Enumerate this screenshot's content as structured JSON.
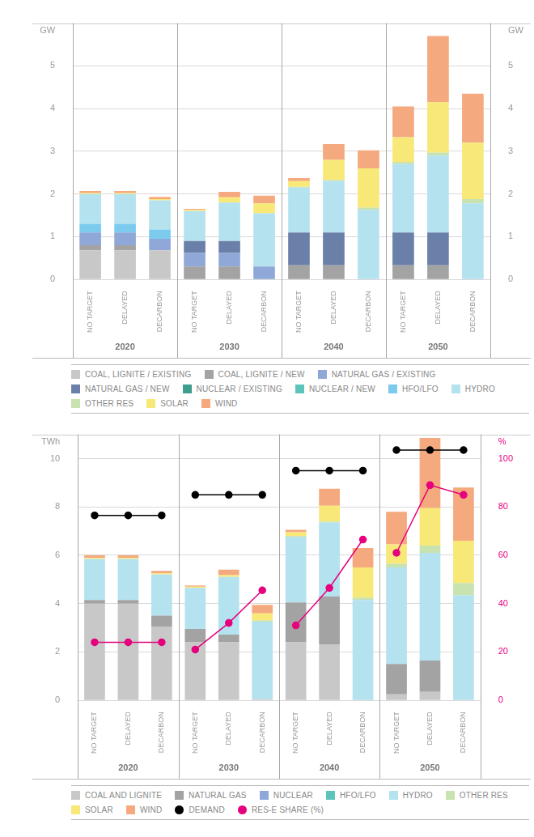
{
  "chart_data": [
    {
      "type": "bar",
      "stacked": true,
      "grid": true,
      "legend": "bottom",
      "y_label": "GW",
      "y2_label": "GW",
      "categories": [
        "NO TARGET",
        "DELAYED",
        "DECARBON",
        "NO TARGET",
        "DELAYED",
        "DECARBON",
        "NO TARGET",
        "DELAYED",
        "DECARBON",
        "NO TARGET",
        "DELAYED",
        "DECARBON"
      ],
      "category_groups": [
        "2020",
        "2030",
        "2040",
        "2050"
      ],
      "ylim": [
        0,
        6
      ],
      "yticks": [
        0,
        1,
        2,
        3,
        4,
        5
      ],
      "y2lim": [
        0,
        6
      ],
      "y2ticks": [
        0,
        1,
        2,
        3,
        4,
        5
      ],
      "series": [
        {
          "name": "COAL, LIGNITE / EXISTING",
          "color": "#c8c8c8",
          "values": [
            0.68,
            0.68,
            0.68,
            0,
            0,
            0,
            0,
            0,
            0,
            0,
            0,
            0
          ]
        },
        {
          "name": "COAL, LIGNITE / NEW",
          "color": "#a3a3a3",
          "values": [
            0.12,
            0.12,
            0,
            0.3,
            0.3,
            0,
            0.33,
            0.33,
            0,
            0.33,
            0.33,
            0
          ]
        },
        {
          "name": "NATURAL GAS / EXISTING",
          "color": "#8fa8d8",
          "values": [
            0.3,
            0.3,
            0.27,
            0.32,
            0.32,
            0.3,
            0,
            0,
            0,
            0,
            0,
            0
          ]
        },
        {
          "name": "NATURAL GAS / NEW",
          "color": "#6b80a8",
          "values": [
            0,
            0,
            0,
            0.28,
            0.28,
            0,
            0.77,
            0.77,
            0,
            0.77,
            0.77,
            0
          ]
        },
        {
          "name": "NUCLEAR / EXISTING",
          "color": "#3e9e8e",
          "values": [
            0,
            0,
            0,
            0,
            0,
            0,
            0,
            0,
            0,
            0,
            0,
            0
          ]
        },
        {
          "name": "NUCLEAR / NEW",
          "color": "#5dc4bc",
          "values": [
            0,
            0,
            0,
            0,
            0,
            0,
            0,
            0,
            0,
            0,
            0,
            0
          ]
        },
        {
          "name": "HFO/LFO",
          "color": "#7ccbef",
          "values": [
            0.2,
            0.2,
            0.22,
            0,
            0,
            0,
            0,
            0,
            0,
            0,
            0,
            0
          ]
        },
        {
          "name": "HYDRO",
          "color": "#b5e2ef",
          "values": [
            0.7,
            0.7,
            0.68,
            0.7,
            0.9,
            1.25,
            1.05,
            1.2,
            1.63,
            1.6,
            1.8,
            1.78
          ]
        },
        {
          "name": "OTHER RES",
          "color": "#c8e2b0",
          "values": [
            0,
            0,
            0,
            0,
            0,
            0,
            0.02,
            0.03,
            0.05,
            0.05,
            0.07,
            0.1
          ]
        },
        {
          "name": "SOLAR",
          "color": "#f8e878",
          "values": [
            0.02,
            0.02,
            0.03,
            0.03,
            0.12,
            0.23,
            0.13,
            0.47,
            0.92,
            0.58,
            1.18,
            1.32
          ]
        },
        {
          "name": "WIND",
          "color": "#f4a97e",
          "values": [
            0.05,
            0.05,
            0.05,
            0.02,
            0.13,
            0.18,
            0.07,
            0.37,
            0.42,
            0.72,
            1.55,
            1.15
          ]
        }
      ]
    },
    {
      "type": "bar",
      "stacked": true,
      "grid": true,
      "legend": "bottom",
      "y_label": "TWh",
      "y2_label": "%",
      "categories": [
        "NO TARGET",
        "DELAYED",
        "DECARBON",
        "NO TARGET",
        "DELAYED",
        "DECARBON",
        "NO TARGET",
        "DELAYED",
        "DECARBON",
        "NO TARGET",
        "DELAYED",
        "DECARBON"
      ],
      "category_groups": [
        "2020",
        "2030",
        "2040",
        "2050"
      ],
      "ylim": [
        0,
        11
      ],
      "yticks": [
        0,
        2,
        4,
        6,
        8,
        10
      ],
      "y2lim": [
        0,
        110
      ],
      "y2ticks": [
        0,
        20,
        40,
        60,
        80,
        100
      ],
      "series": [
        {
          "name": "COAL AND LIGNITE",
          "color": "#c8c8c8",
          "values": [
            4.0,
            4.0,
            3.05,
            2.4,
            2.4,
            0.05,
            2.4,
            2.3,
            0,
            0.25,
            0.35,
            0
          ]
        },
        {
          "name": "NATURAL GAS",
          "color": "#a3a3a3",
          "values": [
            0.15,
            0.15,
            0.45,
            0.55,
            0.32,
            0,
            1.65,
            2.0,
            0,
            1.25,
            1.3,
            0
          ]
        },
        {
          "name": "NUCLEAR",
          "color": "#8fa8d8",
          "values": [
            0,
            0,
            0,
            0,
            0,
            0,
            0,
            0,
            0,
            0,
            0,
            0
          ]
        },
        {
          "name": "HFO/LFO",
          "color": "#5dc4bc",
          "values": [
            0,
            0,
            0,
            0,
            0,
            0,
            0,
            0,
            0,
            0,
            0,
            0
          ]
        },
        {
          "name": "HYDRO",
          "color": "#b5e2ef",
          "values": [
            1.7,
            1.7,
            1.7,
            1.7,
            2.38,
            3.2,
            2.7,
            3.05,
            4.15,
            4.0,
            4.45,
            4.35
          ]
        },
        {
          "name": "OTHER RES",
          "color": "#c8e2b0",
          "values": [
            0,
            0,
            0,
            0,
            0,
            0.05,
            0.05,
            0.05,
            0.1,
            0.15,
            0.3,
            0.5
          ]
        },
        {
          "name": "SOLAR",
          "color": "#f8e878",
          "values": [
            0.05,
            0.05,
            0.05,
            0.05,
            0.08,
            0.3,
            0.15,
            0.65,
            1.25,
            0.8,
            1.55,
            1.75
          ]
        },
        {
          "name": "WIND",
          "color": "#f4a97e",
          "values": [
            0.1,
            0.1,
            0.1,
            0.05,
            0.22,
            0.35,
            0.1,
            0.7,
            0.8,
            1.35,
            2.9,
            2.2
          ]
        },
        {
          "name": "DEMAND",
          "type": "line",
          "marker": "circle",
          "color": "#000000",
          "values": [
            7.65,
            7.65,
            7.65,
            8.5,
            8.5,
            8.5,
            9.5,
            9.5,
            9.5,
            10.35,
            10.35,
            10.35
          ]
        },
        {
          "name": "RES-E SHARE (%)",
          "type": "line",
          "marker": "circle",
          "color": "#e6007e",
          "axis": "y2",
          "values": [
            24,
            24,
            24,
            21,
            32,
            45.5,
            31,
            46.5,
            66.5,
            61,
            89,
            85
          ]
        }
      ]
    }
  ]
}
